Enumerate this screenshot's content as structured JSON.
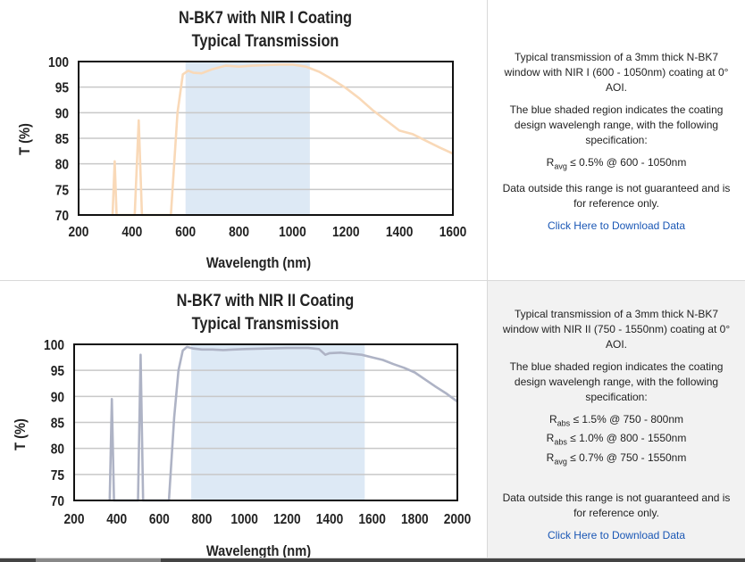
{
  "panels": [
    {
      "title_line1": "N-BK7 with NIR I Coating",
      "title_line2": "Typical Transmission",
      "description": {
        "intro": "Typical transmission of a 3mm thick N-BK7 window with NIR I (600 - 1050nm) coating at 0° AOI.",
        "shaded_note": "The blue shaded region indicates the coating design wavelengh range, with the following specification:",
        "specs": [
          {
            "sym": "R",
            "sub": "avg",
            "text": " ≤ 0.5% @ 600 - 1050nm"
          }
        ],
        "disclaimer": "Data outside this range is not guaranteed and is for reference only.",
        "link": "Click Here to Download Data"
      }
    },
    {
      "title_line1": "N-BK7 with NIR II Coating",
      "title_line2": "Typical Transmission",
      "description": {
        "intro": "Typical transmission of a 3mm thick N-BK7 window with NIR II (750 - 1550nm) coating at 0° AOI.",
        "shaded_note": "The blue shaded region indicates the coating design wavelengh range, with the following specification:",
        "specs": [
          {
            "sym": "R",
            "sub": "abs",
            "text": " ≤ 1.5% @ 750 - 800nm"
          },
          {
            "sym": "R",
            "sub": "abs",
            "text": " ≤ 1.0% @ 800 - 1550nm"
          },
          {
            "sym": "R",
            "sub": "avg",
            "text": " ≤ 0.7% @ 750 - 1550nm"
          }
        ],
        "disclaimer": "Data outside this range is not guaranteed and is for reference only.",
        "link": "Click Here to Download Data"
      }
    }
  ],
  "chart_data": [
    {
      "type": "line",
      "title": "N-BK7 with NIR I Coating Typical Transmission",
      "xlabel": "Wavelength (nm)",
      "ylabel": "T (%)",
      "xlim": [
        200,
        1600
      ],
      "ylim": [
        70,
        100
      ],
      "xticks": [
        200,
        400,
        600,
        800,
        1000,
        1200,
        1400,
        1600
      ],
      "yticks": [
        70,
        75,
        80,
        85,
        90,
        95,
        100
      ],
      "grid": true,
      "line_color": "#f9d9b8",
      "shade_color": "#dde9f5",
      "shaded_range": [
        600,
        1065
      ],
      "series": [
        {
          "x": [
            327,
            335,
            342,
            410,
            425,
            437,
            545,
            570,
            590,
            610,
            630,
            660,
            700,
            750,
            800,
            850,
            900,
            950,
            1000,
            1050,
            1100,
            1150,
            1200,
            1250,
            1300,
            1350,
            1400,
            1450,
            1500,
            1550,
            1600
          ],
          "values": [
            70,
            80.5,
            70,
            70,
            88.5,
            70,
            70,
            90,
            97.5,
            98.2,
            97.8,
            97.7,
            98.5,
            99.2,
            99.0,
            99.2,
            99.3,
            99.4,
            99.4,
            99.0,
            98.0,
            96.5,
            94.8,
            92.8,
            90.5,
            88.5,
            86.5,
            85.8,
            84.5,
            83.2,
            82.0
          ]
        }
      ]
    },
    {
      "type": "line",
      "title": "N-BK7 with NIR II Coating Typical Transmission",
      "xlabel": "Wavelength (nm)",
      "ylabel": "T (%)",
      "xlim": [
        200,
        2000
      ],
      "ylim": [
        70,
        100
      ],
      "xticks": [
        200,
        400,
        600,
        800,
        1000,
        1200,
        1400,
        1600,
        1800,
        2000
      ],
      "yticks": [
        70,
        75,
        80,
        85,
        90,
        95,
        100
      ],
      "grid": true,
      "line_color": "#aeb3c5",
      "shade_color": "#dde9f5",
      "shaded_range": [
        750,
        1565
      ],
      "series": [
        {
          "x": [
            367,
            377,
            387,
            500,
            512,
            524,
            645,
            670,
            690,
            710,
            730,
            760,
            800,
            850,
            900,
            950,
            1000,
            1100,
            1200,
            1300,
            1350,
            1380,
            1400,
            1450,
            1500,
            1550,
            1600,
            1650,
            1700,
            1750,
            1800,
            1850,
            1900,
            1950,
            2000
          ],
          "values": [
            70,
            89.5,
            70,
            70,
            98,
            70,
            70,
            86,
            95,
            98.8,
            99.5,
            99.2,
            99.0,
            99.0,
            98.9,
            99.0,
            99.1,
            99.2,
            99.3,
            99.3,
            99.1,
            98.0,
            98.3,
            98.4,
            98.2,
            98.0,
            97.5,
            97.0,
            96.2,
            95.5,
            94.6,
            93.2,
            91.8,
            90.5,
            89.0
          ]
        }
      ]
    }
  ]
}
